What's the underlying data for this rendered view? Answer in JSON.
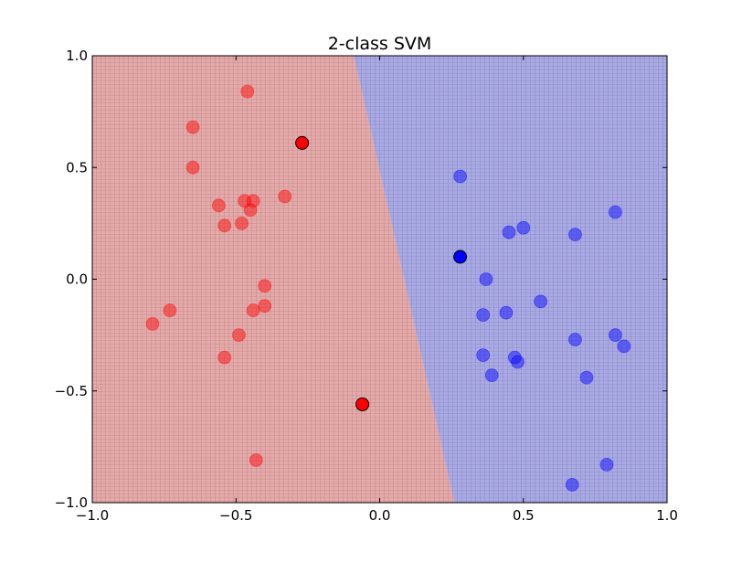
{
  "chart_data": {
    "type": "scatter",
    "title": "2-class SVM",
    "xlabel": "",
    "ylabel": "",
    "xlim": [
      -1.0,
      1.0
    ],
    "ylim": [
      -1.0,
      1.0
    ],
    "x_ticks": [
      -1.0,
      -0.5,
      0.0,
      0.5,
      1.0
    ],
    "y_ticks": [
      -1.0,
      -0.5,
      0.0,
      0.5,
      1.0
    ],
    "x_tick_labels": [
      "−1.0",
      "−0.5",
      "0.0",
      "0.5",
      "1.0"
    ],
    "y_tick_labels": [
      "−1.0",
      "−0.5",
      "0.0",
      "0.5",
      "1.0"
    ],
    "grid": false,
    "legend": "none",
    "background_mesh": true,
    "decision_boundary": {
      "description": "nearly vertical boundary separating red (left) and blue (right) regions",
      "points": [
        [
          -0.09,
          1.0
        ],
        [
          0.26,
          -1.0
        ]
      ]
    },
    "regions": [
      {
        "class": "red",
        "side": "left",
        "color": "#e6a9a9"
      },
      {
        "class": "blue",
        "side": "right",
        "color": "#a9a9e6"
      }
    ],
    "series": [
      {
        "class": "red",
        "role": "training",
        "color": "#ff0000",
        "opacity": 0.45,
        "points": [
          [
            -0.46,
            0.84
          ],
          [
            -0.65,
            0.68
          ],
          [
            -0.65,
            0.5
          ],
          [
            -0.56,
            0.33
          ],
          [
            -0.47,
            0.35
          ],
          [
            -0.44,
            0.35
          ],
          [
            -0.33,
            0.37
          ],
          [
            -0.45,
            0.31
          ],
          [
            -0.54,
            0.24
          ],
          [
            -0.48,
            0.25
          ],
          [
            -0.4,
            -0.03
          ],
          [
            -0.4,
            -0.12
          ],
          [
            -0.44,
            -0.14
          ],
          [
            -0.73,
            -0.14
          ],
          [
            -0.79,
            -0.2
          ],
          [
            -0.49,
            -0.25
          ],
          [
            -0.54,
            -0.35
          ],
          [
            -0.43,
            -0.81
          ]
        ]
      },
      {
        "class": "blue",
        "role": "training",
        "color": "#0000ff",
        "opacity": 0.45,
        "points": [
          [
            0.28,
            0.46
          ],
          [
            0.82,
            0.3
          ],
          [
            0.5,
            0.23
          ],
          [
            0.45,
            0.21
          ],
          [
            0.68,
            0.2
          ],
          [
            0.37,
            0.0
          ],
          [
            0.56,
            -0.1
          ],
          [
            0.36,
            -0.16
          ],
          [
            0.44,
            -0.15
          ],
          [
            0.82,
            -0.25
          ],
          [
            0.68,
            -0.27
          ],
          [
            0.85,
            -0.3
          ],
          [
            0.36,
            -0.34
          ],
          [
            0.47,
            -0.35
          ],
          [
            0.48,
            -0.37
          ],
          [
            0.39,
            -0.43
          ],
          [
            0.72,
            -0.44
          ],
          [
            0.79,
            -0.83
          ],
          [
            0.67,
            -0.92
          ]
        ]
      },
      {
        "class": "red",
        "role": "highlighted",
        "color": "#ff0000",
        "opacity": 1.0,
        "points": [
          [
            -0.27,
            0.61
          ],
          [
            -0.06,
            -0.56
          ]
        ]
      },
      {
        "class": "blue",
        "role": "highlighted",
        "color": "#0000ff",
        "opacity": 1.0,
        "points": [
          [
            0.28,
            0.1
          ]
        ]
      }
    ]
  }
}
